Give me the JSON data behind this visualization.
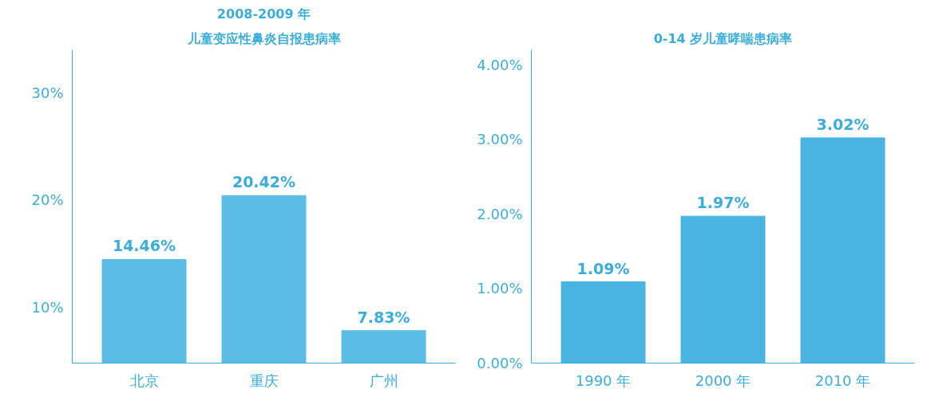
{
  "chart_data": [
    {
      "type": "bar",
      "title": "2008-2009 年",
      "subtitle": "儿童变应性鼻炎自报患病率",
      "categories": [
        "北京",
        "重庆",
        "广州"
      ],
      "values": [
        14.46,
        20.42,
        7.83
      ],
      "value_labels": [
        "14.46%",
        "20.42%",
        "7.83%"
      ],
      "color": "#5bbde6",
      "ylim": [
        4.8,
        34
      ],
      "yticks": [
        {
          "value": 10,
          "label": "10%"
        },
        {
          "value": 20,
          "label": "20%"
        },
        {
          "value": 30,
          "label": "30%"
        }
      ],
      "grid": false
    },
    {
      "type": "bar",
      "title": "0-14 岁儿童哮喘患病率",
      "categories": [
        "1990 年",
        "2000 年",
        "2010 年"
      ],
      "values": [
        1.09,
        1.97,
        3.02
      ],
      "value_labels": [
        "1.09%",
        "1.97%",
        "3.02%"
      ],
      "color": "#4ab4e0",
      "ylim": [
        0,
        4.2
      ],
      "yticks": [
        {
          "value": 0,
          "label": "0.00%"
        },
        {
          "value": 1,
          "label": "1.00%"
        },
        {
          "value": 2,
          "label": "2.00%"
        },
        {
          "value": 3,
          "label": "3.00%"
        },
        {
          "value": 4,
          "label": "4.00%"
        }
      ],
      "grid": false
    }
  ]
}
